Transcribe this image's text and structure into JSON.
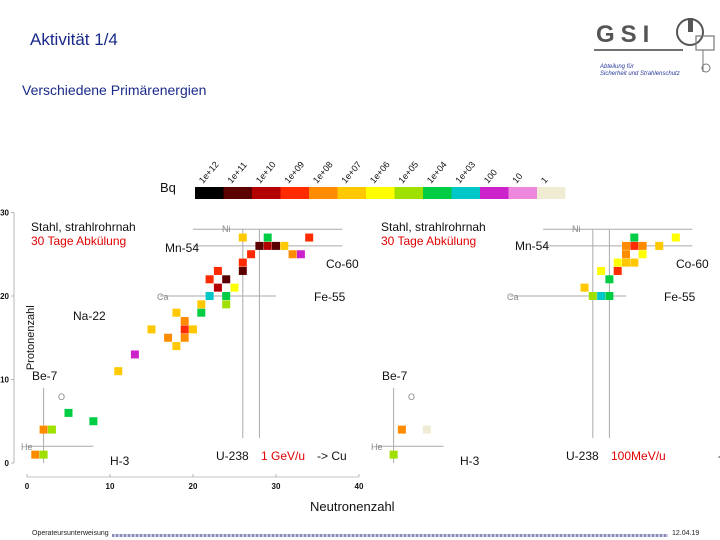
{
  "slide": {
    "title": "Aktivität 1/4",
    "subtitle": "Verschiedene Primärenergien",
    "logo_text": "GSI",
    "department": [
      "Abteilung für",
      "Sicherheit und Strahlenschutz"
    ],
    "x_axis_label": "Neutronenzahl",
    "footer_left": "Operateursunterweisung",
    "footer_right": "12.04.19"
  },
  "chart_data": {
    "type": "heatmap",
    "colorbar": {
      "unit_label": "Bq",
      "labels": [
        "1e+12",
        "1e+11",
        "1e+10",
        "1e+09",
        "1e+08",
        "1e+07",
        "1e+06",
        "1e+05",
        "1e+04",
        "1e+03",
        "100",
        "10",
        "1"
      ],
      "colors": [
        "#000000",
        "#5a0000",
        "#b40000",
        "#ff2a00",
        "#ff8c00",
        "#ffc800",
        "#ffff00",
        "#9fe000",
        "#00cc44",
        "#00c8c8",
        "#cc22cc",
        "#ee88dd",
        "#f0ecd4"
      ]
    },
    "xlabel": "Neutronenzahl",
    "ylabel": "Protonenzahl",
    "xlim": [
      0,
      40
    ],
    "ylim": [
      0,
      30
    ],
    "x_ticks": [
      "0",
      "10",
      "20",
      "30",
      "40"
    ],
    "y_ticks": [
      "0",
      "10",
      "20",
      "30"
    ],
    "panels": [
      {
        "annotation_line1": "Stahl, strahlrohrnah",
        "annotation_line2": "30 Tage Abkülung",
        "beam_prefix": "U-238",
        "beam_energy": "1 GeV/u",
        "beam_suffix": "-> Cu",
        "isotope_labels": [
          "Mn-54",
          "Co-60",
          "Fe-55",
          "Na-22",
          "Be-7",
          "H-3",
          "Ni",
          "Ca",
          "O",
          "He"
        ],
        "cells": [
          {
            "n": 1,
            "z": 1,
            "color": "#ff8c00"
          },
          {
            "n": 2,
            "z": 1,
            "color": "#9fe000"
          },
          {
            "n": 2,
            "z": 4,
            "color": "#ff8c00"
          },
          {
            "n": 3,
            "z": 4,
            "color": "#9fe000"
          },
          {
            "n": 5,
            "z": 6,
            "color": "#00cc44"
          },
          {
            "n": 8,
            "z": 5,
            "color": "#00cc44"
          },
          {
            "n": 11,
            "z": 11,
            "color": "#ffc800"
          },
          {
            "n": 13,
            "z": 13,
            "color": "#cc22cc"
          },
          {
            "n": 17,
            "z": 15,
            "color": "#ff8c00"
          },
          {
            "n": 18,
            "z": 14,
            "color": "#ffc800"
          },
          {
            "n": 19,
            "z": 15,
            "color": "#ff8c00"
          },
          {
            "n": 19,
            "z": 16,
            "color": "#ff2a00"
          },
          {
            "n": 19,
            "z": 17,
            "color": "#ff8c00"
          },
          {
            "n": 18,
            "z": 18,
            "color": "#ffc800"
          },
          {
            "n": 21,
            "z": 19,
            "color": "#ffc800"
          },
          {
            "n": 22,
            "z": 20,
            "color": "#00c8c8"
          },
          {
            "n": 24,
            "z": 20,
            "color": "#00cc44"
          },
          {
            "n": 22,
            "z": 22,
            "color": "#ff2a00"
          },
          {
            "n": 23,
            "z": 23,
            "color": "#ff2a00"
          },
          {
            "n": 26,
            "z": 24,
            "color": "#ff2a00"
          },
          {
            "n": 27,
            "z": 25,
            "color": "#ff2a00"
          },
          {
            "n": 28,
            "z": 26,
            "color": "#5a0000"
          },
          {
            "n": 29,
            "z": 26,
            "color": "#b40000"
          },
          {
            "n": 30,
            "z": 26,
            "color": "#5a0000"
          },
          {
            "n": 29,
            "z": 27,
            "color": "#00cc44"
          },
          {
            "n": 31,
            "z": 26,
            "color": "#ffc800"
          },
          {
            "n": 32,
            "z": 25,
            "color": "#ff8c00"
          },
          {
            "n": 33,
            "z": 25,
            "color": "#cc22cc"
          },
          {
            "n": 34,
            "z": 27,
            "color": "#ff2a00"
          },
          {
            "n": 23,
            "z": 21,
            "color": "#b40000"
          },
          {
            "n": 24,
            "z": 22,
            "color": "#5a0000"
          },
          {
            "n": 26,
            "z": 23,
            "color": "#5a0000"
          },
          {
            "n": 21,
            "z": 18,
            "color": "#00cc44"
          },
          {
            "n": 20,
            "z": 16,
            "color": "#ffc800"
          },
          {
            "n": 15,
            "z": 16,
            "color": "#ffc800"
          },
          {
            "n": 25,
            "z": 21,
            "color": "#ffff00"
          },
          {
            "n": 24,
            "z": 19,
            "color": "#9fe000"
          },
          {
            "n": 26,
            "z": 27,
            "color": "#ffc800"
          }
        ]
      },
      {
        "annotation_line1": "Stahl, strahlrohrnah",
        "annotation_line2": "30 Tage Abkülung",
        "beam_prefix": "U-238",
        "beam_energy": "100MeV/u",
        "beam_suffix": "-> Cu",
        "isotope_labels": [
          "Mn-54",
          "Co-60",
          "Fe-55",
          "Be-7",
          "H-3",
          "Ni",
          "Ca",
          "O",
          "He"
        ],
        "cells": [
          {
            "n": 2,
            "z": 1,
            "color": "#9fe000"
          },
          {
            "n": 3,
            "z": 4,
            "color": "#ff8c00"
          },
          {
            "n": 6,
            "z": 4,
            "color": "#f0ecd4"
          },
          {
            "n": 27,
            "z": 23,
            "color": "#ffff00"
          },
          {
            "n": 25,
            "z": 21,
            "color": "#ffc800"
          },
          {
            "n": 26,
            "z": 20,
            "color": "#9fe000"
          },
          {
            "n": 27,
            "z": 20,
            "color": "#00c8c8"
          },
          {
            "n": 28,
            "z": 20,
            "color": "#00cc44"
          },
          {
            "n": 28,
            "z": 22,
            "color": "#00cc44"
          },
          {
            "n": 29,
            "z": 23,
            "color": "#ff2a00"
          },
          {
            "n": 30,
            "z": 24,
            "color": "#ffc800"
          },
          {
            "n": 30,
            "z": 25,
            "color": "#ff8c00"
          },
          {
            "n": 31,
            "z": 26,
            "color": "#ff2a00"
          },
          {
            "n": 30,
            "z": 26,
            "color": "#ff8c00"
          },
          {
            "n": 31,
            "z": 27,
            "color": "#00cc44"
          },
          {
            "n": 32,
            "z": 26,
            "color": "#ff8c00"
          },
          {
            "n": 34,
            "z": 26,
            "color": "#ffc800"
          },
          {
            "n": 32,
            "z": 25,
            "color": "#ffff00"
          },
          {
            "n": 36,
            "z": 27,
            "color": "#ffff00"
          },
          {
            "n": 29,
            "z": 24,
            "color": "#ffff00"
          },
          {
            "n": 31,
            "z": 24,
            "color": "#ffc800"
          }
        ]
      }
    ]
  }
}
